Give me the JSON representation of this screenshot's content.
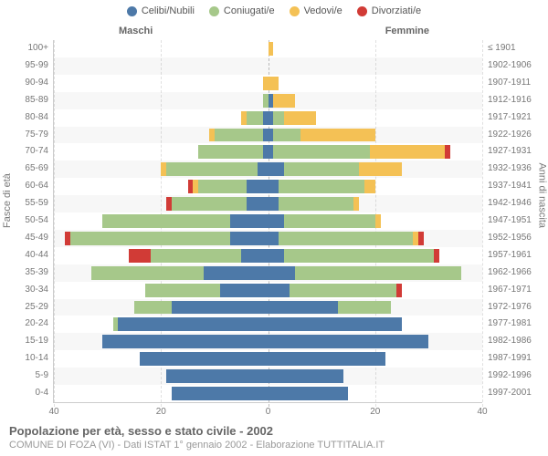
{
  "type": "population-pyramid",
  "legend": [
    {
      "label": "Celibi/Nubili",
      "color": "#4d79a8"
    },
    {
      "label": "Coniugati/e",
      "color": "#a6c88a"
    },
    {
      "label": "Vedovi/e",
      "color": "#f4c155"
    },
    {
      "label": "Divorziati/e",
      "color": "#d13b36"
    }
  ],
  "headers": {
    "male": "Maschi",
    "female": "Femmine"
  },
  "axis_left_title": "Fasce di età",
  "axis_right_title": "Anni di nascita",
  "xmax": 40,
  "xticks": [
    40,
    20,
    0,
    20,
    40
  ],
  "title": "Popolazione per età, sesso e stato civile - 2002",
  "subtitle": "COMUNE DI FOZA (VI) - Dati ISTAT 1° gennaio 2002 - Elaborazione TUTTITALIA.IT",
  "background_color": "#ffffff",
  "alt_row_color": "rgba(0,0,0,0.03)",
  "grid_color": "rgba(0,0,0,0.12)",
  "rows": [
    {
      "age": "100+",
      "birth": "≤ 1901",
      "m": [
        0,
        0,
        0,
        0
      ],
      "f": [
        0,
        0,
        1,
        0
      ]
    },
    {
      "age": "95-99",
      "birth": "1902-1906",
      "m": [
        0,
        0,
        0,
        0
      ],
      "f": [
        0,
        0,
        0,
        0
      ]
    },
    {
      "age": "90-94",
      "birth": "1907-1911",
      "m": [
        0,
        0,
        1,
        0
      ],
      "f": [
        0,
        0,
        2,
        0
      ]
    },
    {
      "age": "85-89",
      "birth": "1912-1916",
      "m": [
        0,
        1,
        0,
        0
      ],
      "f": [
        1,
        0,
        4,
        0
      ]
    },
    {
      "age": "80-84",
      "birth": "1917-1921",
      "m": [
        1,
        3,
        1,
        0
      ],
      "f": [
        1,
        2,
        6,
        0
      ]
    },
    {
      "age": "75-79",
      "birth": "1922-1926",
      "m": [
        1,
        9,
        1,
        0
      ],
      "f": [
        1,
        5,
        14,
        0
      ]
    },
    {
      "age": "70-74",
      "birth": "1927-1931",
      "m": [
        1,
        12,
        0,
        0
      ],
      "f": [
        1,
        18,
        14,
        1
      ]
    },
    {
      "age": "65-69",
      "birth": "1932-1936",
      "m": [
        2,
        17,
        1,
        0
      ],
      "f": [
        3,
        14,
        8,
        0
      ]
    },
    {
      "age": "60-64",
      "birth": "1937-1941",
      "m": [
        4,
        9,
        1,
        1
      ],
      "f": [
        2,
        16,
        2,
        0
      ]
    },
    {
      "age": "55-59",
      "birth": "1942-1946",
      "m": [
        4,
        14,
        0,
        1
      ],
      "f": [
        2,
        14,
        1,
        0
      ]
    },
    {
      "age": "50-54",
      "birth": "1947-1951",
      "m": [
        7,
        24,
        0,
        0
      ],
      "f": [
        3,
        17,
        1,
        0
      ]
    },
    {
      "age": "45-49",
      "birth": "1952-1956",
      "m": [
        7,
        30,
        0,
        1
      ],
      "f": [
        2,
        25,
        1,
        1
      ]
    },
    {
      "age": "40-44",
      "birth": "1957-1961",
      "m": [
        5,
        17,
        0,
        4
      ],
      "f": [
        3,
        28,
        0,
        1
      ]
    },
    {
      "age": "35-39",
      "birth": "1962-1966",
      "m": [
        12,
        21,
        0,
        0
      ],
      "f": [
        5,
        31,
        0,
        0
      ]
    },
    {
      "age": "30-34",
      "birth": "1967-1971",
      "m": [
        9,
        14,
        0,
        0
      ],
      "f": [
        4,
        20,
        0,
        1
      ]
    },
    {
      "age": "25-29",
      "birth": "1972-1976",
      "m": [
        18,
        7,
        0,
        0
      ],
      "f": [
        13,
        10,
        0,
        0
      ]
    },
    {
      "age": "20-24",
      "birth": "1977-1981",
      "m": [
        28,
        1,
        0,
        0
      ],
      "f": [
        25,
        0,
        0,
        0
      ]
    },
    {
      "age": "15-19",
      "birth": "1982-1986",
      "m": [
        31,
        0,
        0,
        0
      ],
      "f": [
        30,
        0,
        0,
        0
      ]
    },
    {
      "age": "10-14",
      "birth": "1987-1991",
      "m": [
        24,
        0,
        0,
        0
      ],
      "f": [
        22,
        0,
        0,
        0
      ]
    },
    {
      "age": "5-9",
      "birth": "1992-1996",
      "m": [
        19,
        0,
        0,
        0
      ],
      "f": [
        14,
        0,
        0,
        0
      ]
    },
    {
      "age": "0-4",
      "birth": "1997-2001",
      "m": [
        18,
        0,
        0,
        0
      ],
      "f": [
        15,
        0,
        0,
        0
      ]
    }
  ]
}
